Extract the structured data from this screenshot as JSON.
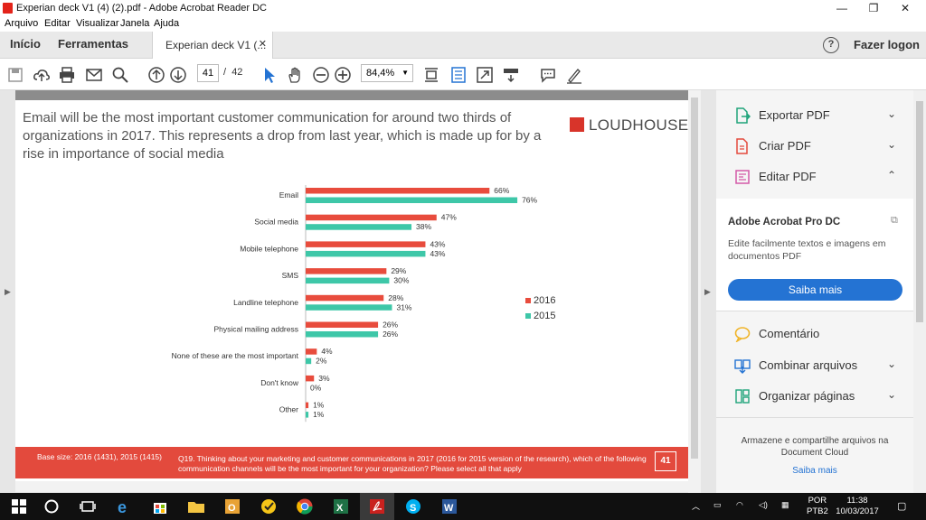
{
  "window": {
    "title": "Experian deck V1 (4) (2).pdf - Adobe Acrobat Reader DC"
  },
  "menu": [
    "Arquivo",
    "Editar",
    "Visualizar",
    "Janela",
    "Ajuda"
  ],
  "tabs": {
    "home": "Início",
    "tools": "Ferramentas",
    "doc": "Experian deck V1 (...",
    "close": "✕"
  },
  "header": {
    "help": "?",
    "login": "Fazer logon"
  },
  "toolbar": {
    "page_current": "41",
    "page_sep": "/",
    "page_total": "42",
    "zoom": "84,4%"
  },
  "slide": {
    "title": "Email will be the most important customer communication for around two thirds of organizations in 2017.  This represents a drop from last year, which is made up for by a rise in importance of social media",
    "logo": "LOUDHOUSE",
    "base": "Base size: 2016 (1431), 2015 (1415)",
    "question": "Q19. Thinking about your marketing and customer communications in 2017 (2016 for 2015 version of the research), which of the following communication channels will be the most important for your organization? Please select all that apply",
    "page_number": "41"
  },
  "chart_data": {
    "type": "bar",
    "orientation": "horizontal",
    "categories": [
      "Email",
      "Social media",
      "Mobile telephone",
      "SMS",
      "Landline telephone",
      "Physical mailing address",
      "None of these are the most important",
      "Don't know",
      "Other"
    ],
    "series": [
      {
        "name": "2016",
        "color": "#e84c3d",
        "values": [
          66,
          47,
          43,
          29,
          28,
          26,
          4,
          3,
          1
        ],
        "labels": [
          "66%",
          "47%",
          "43%",
          "29%",
          "28%",
          "26%",
          "4%",
          "3%",
          "1%"
        ]
      },
      {
        "name": "2015",
        "color": "#3ec7a8",
        "values": [
          76,
          38,
          43,
          30,
          31,
          26,
          2,
          0,
          1
        ],
        "labels": [
          "76%",
          "38%",
          "43%",
          "30%",
          "31%",
          "26%",
          "2%",
          "0%",
          "1%"
        ]
      }
    ],
    "xlim": [
      0,
      100
    ],
    "legend": "right",
    "grid": false
  },
  "rightpane": {
    "export": "Exportar PDF",
    "create": "Criar PDF",
    "edit": "Editar PDF",
    "pro_title": "Adobe Acrobat Pro DC",
    "pro_desc": "Edite facilmente textos e imagens em documentos PDF",
    "pro_btn": "Saiba mais",
    "comment": "Comentário",
    "combine": "Combinar arquivos",
    "organize": "Organizar páginas",
    "footer": "Armazene e compartilhe arquivos na Document Cloud",
    "footer_link": "Saiba mais"
  },
  "taskbar": {
    "lang1": "POR",
    "lang2": "PTB2",
    "time": "11:38",
    "date": "10/03/2017"
  }
}
